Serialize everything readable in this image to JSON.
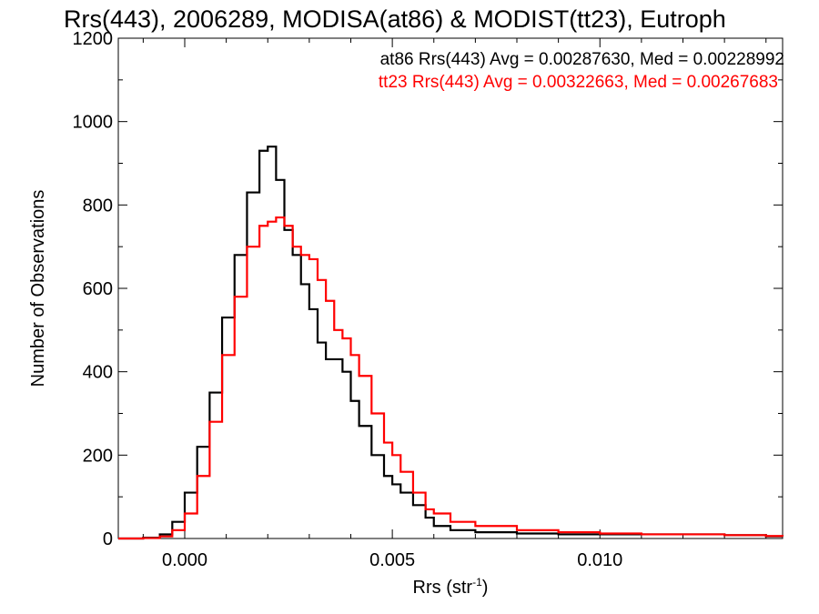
{
  "chart_data": {
    "type": "line",
    "title": "Rrs(443), 2006289, MODISA(at86) & MODIST(tt23), Eutroph",
    "xlabel_main": "Rrs (str",
    "xlabel_sup": "-1",
    "xlabel_close": ")",
    "ylabel": "Number of Observations",
    "xlim": [
      -0.0016,
      0.0144
    ],
    "ylim": [
      0,
      1200
    ],
    "xticks": [
      0.0,
      0.005,
      0.01
    ],
    "xtick_labels": [
      "0.000",
      "0.005",
      "0.010"
    ],
    "yticks": [
      0,
      200,
      400,
      600,
      800,
      1000,
      1200
    ],
    "ytick_labels": [
      "0",
      "200",
      "400",
      "600",
      "800",
      "1000",
      "1200"
    ],
    "grid": false,
    "series": [
      {
        "name": "at86",
        "color": "#000000",
        "annotation": "at86 Rrs(443) Avg = 0.00287630, Med = 0.00228992",
        "x": [
          -0.0016,
          -0.001,
          -0.0006,
          -0.0003,
          0.0,
          0.0003,
          0.0006,
          0.0009,
          0.0012,
          0.0015,
          0.0018,
          0.002,
          0.0022,
          0.0024,
          0.0026,
          0.0028,
          0.003,
          0.0032,
          0.0034,
          0.0036,
          0.0038,
          0.004,
          0.0042,
          0.0045,
          0.0048,
          0.005,
          0.0052,
          0.0055,
          0.0058,
          0.006,
          0.0064,
          0.007,
          0.008,
          0.009,
          0.01,
          0.011,
          0.012,
          0.013,
          0.014,
          0.0144
        ],
        "y": [
          0,
          2,
          10,
          40,
          110,
          220,
          350,
          530,
          680,
          830,
          930,
          940,
          860,
          740,
          680,
          610,
          550,
          470,
          430,
          430,
          400,
          330,
          270,
          200,
          150,
          130,
          110,
          80,
          50,
          30,
          20,
          15,
          12,
          10,
          10,
          10,
          10,
          8,
          5,
          5
        ]
      },
      {
        "name": "tt23",
        "color": "#ff0000",
        "annotation": "tt23 Rrs(443) Avg = 0.00322663, Med = 0.00267683",
        "x": [
          -0.0016,
          -0.001,
          -0.0006,
          -0.0003,
          0.0,
          0.0003,
          0.0006,
          0.0009,
          0.0012,
          0.0015,
          0.0018,
          0.002,
          0.0022,
          0.0024,
          0.0026,
          0.0028,
          0.003,
          0.0032,
          0.0034,
          0.0036,
          0.0038,
          0.004,
          0.0042,
          0.0045,
          0.0048,
          0.005,
          0.0052,
          0.0055,
          0.0058,
          0.006,
          0.0064,
          0.007,
          0.008,
          0.009,
          0.01,
          0.011,
          0.012,
          0.013,
          0.014,
          0.0144
        ],
        "y": [
          0,
          1,
          5,
          20,
          60,
          150,
          280,
          440,
          580,
          700,
          750,
          760,
          770,
          750,
          700,
          680,
          670,
          620,
          570,
          500,
          480,
          440,
          390,
          300,
          230,
          200,
          160,
          110,
          70,
          60,
          40,
          30,
          20,
          15,
          12,
          10,
          10,
          8,
          6,
          5
        ]
      }
    ]
  }
}
